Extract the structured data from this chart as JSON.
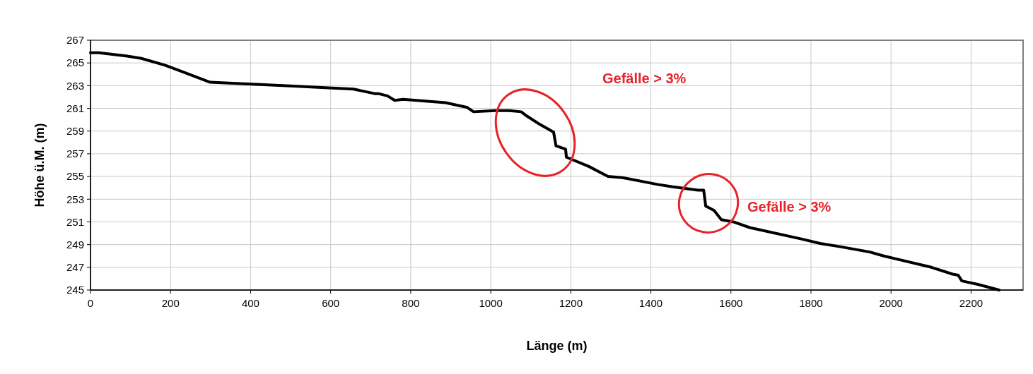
{
  "chart_data": {
    "type": "line",
    "xlabel": "Länge (m)",
    "ylabel": "Höhe ü.M. (m)",
    "xlim": [
      0,
      2330
    ],
    "xticks": [
      0,
      200,
      400,
      600,
      800,
      1000,
      1200,
      1400,
      1600,
      1800,
      2000,
      2200
    ],
    "ylim": [
      245,
      267
    ],
    "yticks": [
      245,
      247,
      249,
      251,
      253,
      255,
      257,
      259,
      261,
      263,
      265,
      267
    ],
    "grid": true,
    "marker": "none",
    "line_style": "solid",
    "series": [
      {
        "color": "#000000",
        "x": [
          0,
          21,
          92,
          127,
          186,
          299,
          480,
          657,
          710,
          719,
          742,
          760,
          781,
          887,
          913,
          940,
          957,
          1011,
          1046,
          1076,
          1087,
          1122,
          1157,
          1163,
          1187,
          1189,
          1244,
          1293,
          1329,
          1417,
          1452,
          1518,
          1532,
          1537,
          1558,
          1576,
          1606,
          1647,
          1776,
          1823,
          1876,
          1947,
          1982,
          2101,
          2154,
          2168,
          2177,
          2217,
          2270
        ],
        "values": [
          265.9,
          265.9,
          265.6,
          265.4,
          264.8,
          263.3,
          263.0,
          262.7,
          262.3,
          262.3,
          262.1,
          261.7,
          261.8,
          261.5,
          261.3,
          261.1,
          260.7,
          260.8,
          260.8,
          260.7,
          260.4,
          259.6,
          258.9,
          257.7,
          257.4,
          256.7,
          255.9,
          255.0,
          254.9,
          254.3,
          254.1,
          253.8,
          253.8,
          252.4,
          252.0,
          251.2,
          251.0,
          250.5,
          249.5,
          249.1,
          248.8,
          248.35,
          248.0,
          247.0,
          246.4,
          246.3,
          245.8,
          245.5,
          245.0
        ]
      }
    ],
    "annotations": [
      "Gefälle > 3%",
      "Gefälle > 3%"
    ]
  }
}
